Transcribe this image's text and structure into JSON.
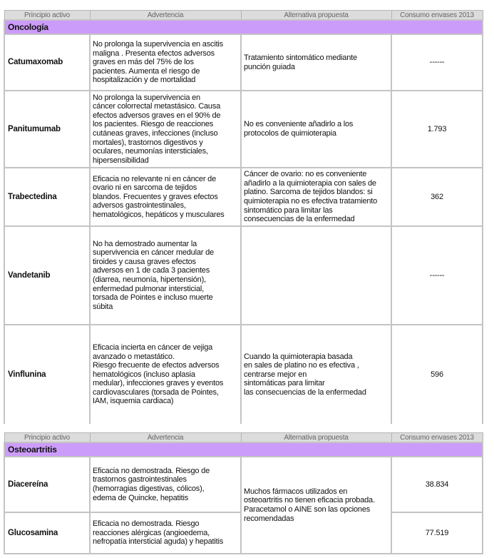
{
  "headers": {
    "principio": "Principio activo",
    "advertencia": "Advertencia",
    "alternativa": "Alternativa propuesta",
    "consumo": "Consumo envases 2013"
  },
  "oncologia": {
    "section": "Oncología",
    "rows": [
      {
        "name": "Catumaxomab",
        "advertencia": "No prolonga la supervivencia en ascitis\nmaligna . Presenta efectos adversos\ngraves en más del 75% de los\npacientes. Aumenta el riesgo de\nhospitalización y de mortalidad",
        "alternativa": "Tratamiento sintomático mediante\npunción guiada",
        "consumo": "------"
      },
      {
        "name": "Panitumumab",
        "advertencia": "No prolonga la supervivencia en\ncáncer colorrectal metastásico.  Causa\nefectos adversos  graves en el 90% de\nlos pacientes. Riesgo de reacciones\ncutáneas graves, infecciones (incluso\nmortales), trastornos digestivos y\noculares, neumonías intersticiales,\nhipersensibilidad",
        "alternativa": "No es conveniente  añadirlo a los\nprotocolos de quimioterapia",
        "consumo": "1.793"
      },
      {
        "name": "Trabectedina",
        "advertencia": "Eficacia no relevante ni en cáncer de\novario ni en sarcoma de tejidos\nblandos. Frecuentes y graves efectos\nadversos gastrointestinales,\nhematológicos, hepáticos y musculares",
        "alternativa": "Cáncer de ovario: no es conveniente\nañadirlo a la quimioterapia con sales de\nplatino. Sarcoma de tejidos blandos: si\nquimioterapia no es efectiva tratamiento\nsintomático para limitar las\nconsecuencias de la enfermedad",
        "consumo": "362"
      },
      {
        "name": "Vandetanib",
        "advertencia": "No ha demostrado aumentar  la\nsupervivencia en cáncer medular de\ntiroides y causa graves  efectos\nadversos en 1 de cada 3 pacientes\n(diarrea, neumonía, hipertensión),\nenfermedad pulmonar intersticial,\ntorsada de Pointes e incluso muerte\nsúbita",
        "alternativa": "",
        "consumo": "------"
      },
      {
        "name": "Vinflunina",
        "advertencia": "Eficacia incierta en cáncer de vejiga\navanzado o metastático.\nRiesgo frecuente de efectos adversos\nhematológicos (incluso aplasia\nmedular), infecciones graves y eventos\ncardiovasculares (torsada de Pointes,\nIAM,  isquemia cardiaca)",
        "alternativa": "Cuando la quimioterapia basada\nen sales de platino no es efectiva ,\ncentrarse mejor en\nsintomáticas para limitar\nlas consecuencias de la enfermedad",
        "consumo": "596"
      }
    ]
  },
  "osteoartritis": {
    "section": "Osteoartritis",
    "alternativa": "Muchos fármacos utilizados en\nosteoartritis no tienen eficacia probada.\nParacetamol o AINE son las opciones\nrecomendadas",
    "rows": [
      {
        "name": "Diacereína",
        "advertencia": "Eficacia no demostrada. Riesgo de\ntrastornos gastrointestinales\n(hemorragias digestivas, cólicos),\nedema de Quincke, hepatitis",
        "consumo": "38.834"
      },
      {
        "name": "Glucosamina",
        "advertencia": "Eficacia no demostrada. Riesgo\nreacciones alérgicas (angioedema,\nnefropatía intersticial aguda) y  hepatitis",
        "consumo": "77.519"
      }
    ]
  },
  "colors": {
    "section_bg": "#cc9cfb",
    "header_bg": "#dcdcdc",
    "border": "#c4c4c4"
  }
}
